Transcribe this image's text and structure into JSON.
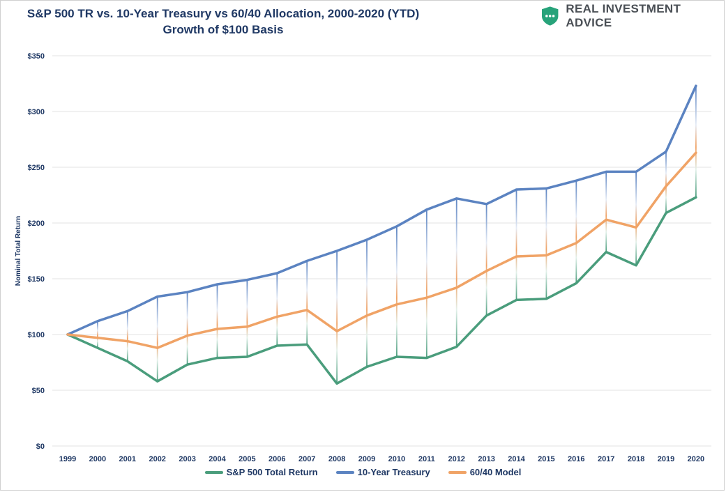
{
  "header": {
    "title_line1": "S&P 500 TR vs. 10-Year Treasury vs 60/40 Allocation, 2000-2020 (YTD)",
    "title_line2": "Growth of $100 Basis",
    "brand_name": "REAL INVESTMENT ADVICE",
    "brand_icon": "shield-chat-icon",
    "brand_color": "#27a37a"
  },
  "chart_data": {
    "type": "line",
    "title": "S&P 500 TR vs. 10-Year Treasury vs 60/40 Allocation, 2000-2020 (YTD)",
    "subtitle": "Growth of $100 Basis",
    "xlabel": "",
    "ylabel": "Nominal Total Return",
    "ylim": [
      0,
      350
    ],
    "yticks": [
      "$0",
      "$50",
      "$100",
      "$150",
      "$200",
      "$250",
      "$300",
      "$350"
    ],
    "ytick_values": [
      0,
      50,
      100,
      150,
      200,
      250,
      300,
      350
    ],
    "categories": [
      "1999",
      "2000",
      "2001",
      "2002",
      "2003",
      "2004",
      "2005",
      "2006",
      "2007",
      "2008",
      "2009",
      "2010",
      "2011",
      "2012",
      "2013",
      "2014",
      "2015",
      "2016",
      "2017",
      "2018",
      "2019",
      "2020"
    ],
    "grid": "horizontal",
    "legend_position": "bottom",
    "drop_lines": true,
    "series": [
      {
        "name": "S&P 500 Total Return",
        "color": "#4a9d7c",
        "values": [
          100,
          88,
          76,
          58,
          73,
          79,
          80,
          90,
          91,
          56,
          71,
          80,
          79,
          89,
          117,
          131,
          132,
          146,
          174,
          162,
          209,
          223
        ]
      },
      {
        "name": "10-Year Treasury",
        "color": "#5b83c1",
        "values": [
          100,
          112,
          121,
          134,
          138,
          145,
          149,
          155,
          166,
          175,
          185,
          197,
          212,
          222,
          217,
          230,
          231,
          238,
          246,
          246,
          264,
          323
        ]
      },
      {
        "name": "60/40 Model",
        "color": "#f0a366",
        "values": [
          100,
          97,
          94,
          88,
          99,
          105,
          107,
          116,
          122,
          103,
          117,
          127,
          133,
          142,
          157,
          170,
          171,
          182,
          203,
          196,
          233,
          263
        ]
      }
    ]
  }
}
